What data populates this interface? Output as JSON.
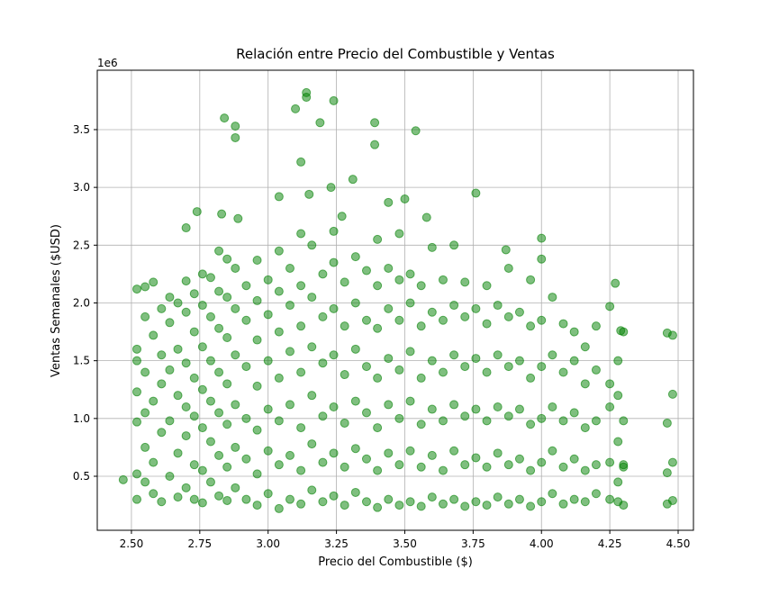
{
  "chart_data": {
    "type": "scatter",
    "title": "Relación entre Precio del Combustible y Ventas",
    "xlabel": "Precio del Combustible ($)",
    "ylabel": "Ventas Semanales ($USD)",
    "y_offset_label": "1e6",
    "color": "#008000",
    "grid": true,
    "xlim": [
      2.375,
      4.556
    ],
    "ylim": [
      0.0325,
      4.014
    ],
    "xticks": [
      {
        "value": 2.5,
        "label": "2.50"
      },
      2.75,
      {
        "value": 3.0,
        "label": "3.00"
      },
      3.25,
      {
        "value": 3.5,
        "label": "3.50"
      },
      3.75,
      {
        "value": 4.0,
        "label": "4.00"
      },
      4.25,
      {
        "value": 4.5,
        "label": "4.50"
      }
    ],
    "yticks": [
      0.5,
      {
        "value": 1.0,
        "label": "1.0"
      },
      1.5,
      {
        "value": 2.0,
        "label": "2.0"
      },
      2.5,
      {
        "value": 3.0,
        "label": "3.0"
      },
      3.5
    ],
    "x": [
      3.14,
      3.14,
      3.1,
      2.84,
      2.88,
      2.88,
      3.19,
      3.24,
      3.39,
      3.39,
      3.54,
      3.12,
      3.31,
      3.23,
      3.5,
      3.04,
      3.76,
      3.15,
      2.74,
      2.83,
      2.89,
      3.44,
      2.7,
      3.58,
      3.27,
      4.0,
      3.87,
      4.27,
      2.47,
      4.46,
      4.48,
      4.48,
      4.46,
      4.48,
      4.46,
      4.48,
      4.29,
      4.3,
      4.46,
      2.52,
      2.52,
      2.52,
      2.52,
      2.52,
      2.52,
      2.52,
      2.55,
      2.55,
      2.55,
      2.55,
      2.55,
      2.55,
      2.58,
      2.58,
      2.58,
      2.58,
      2.58,
      2.61,
      2.61,
      2.61,
      2.61,
      2.61,
      2.64,
      2.64,
      2.64,
      2.64,
      2.64,
      2.67,
      2.67,
      2.67,
      2.67,
      2.67,
      2.7,
      2.7,
      2.7,
      2.7,
      2.7,
      2.7,
      2.73,
      2.73,
      2.73,
      2.73,
      2.73,
      2.73,
      2.76,
      2.76,
      2.76,
      2.76,
      2.76,
      2.76,
      2.76,
      2.79,
      2.79,
      2.79,
      2.79,
      2.79,
      2.79,
      2.82,
      2.82,
      2.82,
      2.82,
      2.82,
      2.82,
      2.82,
      2.85,
      2.85,
      2.85,
      2.85,
      2.85,
      2.85,
      2.85,
      2.88,
      2.88,
      2.88,
      2.88,
      2.88,
      2.88,
      2.92,
      2.92,
      2.92,
      2.92,
      2.92,
      2.92,
      2.96,
      2.96,
      2.96,
      2.96,
      2.96,
      2.96,
      2.96,
      3.0,
      3.0,
      3.0,
      3.0,
      3.0,
      3.0,
      3.04,
      3.04,
      3.04,
      3.04,
      3.04,
      3.04,
      3.04,
      3.08,
      3.08,
      3.08,
      3.08,
      3.08,
      3.08,
      3.12,
      3.12,
      3.12,
      3.12,
      3.12,
      3.12,
      3.12,
      3.16,
      3.16,
      3.16,
      3.16,
      3.16,
      3.16,
      3.2,
      3.2,
      3.2,
      3.2,
      3.2,
      3.2,
      3.24,
      3.24,
      3.24,
      3.24,
      3.24,
      3.24,
      3.24,
      3.28,
      3.28,
      3.28,
      3.28,
      3.28,
      3.28,
      3.32,
      3.32,
      3.32,
      3.32,
      3.32,
      3.32,
      3.36,
      3.36,
      3.36,
      3.36,
      3.36,
      3.36,
      3.4,
      3.4,
      3.4,
      3.4,
      3.4,
      3.4,
      3.4,
      3.44,
      3.44,
      3.44,
      3.44,
      3.44,
      3.44,
      3.48,
      3.48,
      3.48,
      3.48,
      3.48,
      3.48,
      3.48,
      3.52,
      3.52,
      3.52,
      3.52,
      3.52,
      3.52,
      3.56,
      3.56,
      3.56,
      3.56,
      3.56,
      3.56,
      3.6,
      3.6,
      3.6,
      3.6,
      3.6,
      3.6,
      3.64,
      3.64,
      3.64,
      3.64,
      3.64,
      3.64,
      3.68,
      3.68,
      3.68,
      3.68,
      3.68,
      3.68,
      3.72,
      3.72,
      3.72,
      3.72,
      3.72,
      3.72,
      3.76,
      3.76,
      3.76,
      3.76,
      3.76,
      3.8,
      3.8,
      3.8,
      3.8,
      3.8,
      3.8,
      3.84,
      3.84,
      3.84,
      3.84,
      3.84,
      3.88,
      3.88,
      3.88,
      3.88,
      3.88,
      3.88,
      3.92,
      3.92,
      3.92,
      3.92,
      3.92,
      3.96,
      3.96,
      3.96,
      3.96,
      3.96,
      3.96,
      4.0,
      4.0,
      4.0,
      4.0,
      4.0,
      4.0,
      4.04,
      4.04,
      4.04,
      4.04,
      4.04,
      4.08,
      4.08,
      4.08,
      4.08,
      4.08,
      4.12,
      4.12,
      4.12,
      4.12,
      4.12,
      4.16,
      4.16,
      4.16,
      4.16,
      4.16,
      4.2,
      4.2,
      4.2,
      4.2,
      4.2,
      4.25,
      4.25,
      4.25,
      4.25,
      4.25,
      4.28,
      4.28,
      4.28,
      4.28,
      4.28,
      4.3,
      4.3,
      4.3,
      4.3
    ],
    "values": [
      3.82,
      3.78,
      3.68,
      3.6,
      3.53,
      3.43,
      3.56,
      3.75,
      3.56,
      3.37,
      3.49,
      3.22,
      3.07,
      3.0,
      2.9,
      2.92,
      2.95,
      2.94,
      2.79,
      2.77,
      2.73,
      2.87,
      2.65,
      2.74,
      2.75,
      2.56,
      2.46,
      2.17,
      0.47,
      1.74,
      1.21,
      0.62,
      0.26,
      0.29,
      0.96,
      1.72,
      1.76,
      0.6,
      0.53,
      0.3,
      0.52,
      0.97,
      1.23,
      1.5,
      1.6,
      2.12,
      0.45,
      0.75,
      1.05,
      1.4,
      1.88,
      2.14,
      0.35,
      0.62,
      1.15,
      1.72,
      2.18,
      0.28,
      0.88,
      1.3,
      1.55,
      1.95,
      0.5,
      0.98,
      1.42,
      1.83,
      2.05,
      0.32,
      0.7,
      1.2,
      1.6,
      2.0,
      0.4,
      0.85,
      1.1,
      1.48,
      1.92,
      2.19,
      0.3,
      0.6,
      1.02,
      1.35,
      1.75,
      2.08,
      0.27,
      0.55,
      0.92,
      1.25,
      1.62,
      1.98,
      2.25,
      0.45,
      0.8,
      1.15,
      1.5,
      1.88,
      2.22,
      0.33,
      0.68,
      1.05,
      1.4,
      1.78,
      2.1,
      2.45,
      0.29,
      0.58,
      0.95,
      1.3,
      1.7,
      2.05,
      2.38,
      0.4,
      0.75,
      1.12,
      1.55,
      1.95,
      2.3,
      0.3,
      0.65,
      1.0,
      1.45,
      1.85,
      2.15,
      0.25,
      0.52,
      0.9,
      1.28,
      1.68,
      2.02,
      2.37,
      0.35,
      0.72,
      1.08,
      1.5,
      1.9,
      2.2,
      0.22,
      0.6,
      0.98,
      1.35,
      1.75,
      2.1,
      2.45,
      0.3,
      0.68,
      1.12,
      1.58,
      1.98,
      2.3,
      0.26,
      0.55,
      0.92,
      1.4,
      1.8,
      2.15,
      2.6,
      0.38,
      0.78,
      1.2,
      1.62,
      2.05,
      2.5,
      0.28,
      0.62,
      1.02,
      1.48,
      1.88,
      2.25,
      0.33,
      0.7,
      1.1,
      1.55,
      1.95,
      2.35,
      2.62,
      0.25,
      0.58,
      0.96,
      1.38,
      1.8,
      2.18,
      0.36,
      0.74,
      1.15,
      1.6,
      2.0,
      2.4,
      0.28,
      0.65,
      1.05,
      1.45,
      1.85,
      2.28,
      0.23,
      0.55,
      0.92,
      1.35,
      1.78,
      2.15,
      2.55,
      0.3,
      0.7,
      1.12,
      1.52,
      1.95,
      2.3,
      0.25,
      0.6,
      1.0,
      1.42,
      1.85,
      2.2,
      2.6,
      0.28,
      0.72,
      1.15,
      1.58,
      2.0,
      2.25,
      0.24,
      0.58,
      0.95,
      1.35,
      1.8,
      2.15,
      0.32,
      0.68,
      1.08,
      1.5,
      1.92,
      2.48,
      0.26,
      0.55,
      0.98,
      1.4,
      1.85,
      2.2,
      0.3,
      0.72,
      1.12,
      1.55,
      1.98,
      2.5,
      0.24,
      0.6,
      1.02,
      1.45,
      1.88,
      2.18,
      0.28,
      0.66,
      1.08,
      1.52,
      1.95,
      0.25,
      0.58,
      0.98,
      1.4,
      1.82,
      2.15,
      0.32,
      0.7,
      1.1,
      1.55,
      1.98,
      0.26,
      0.6,
      1.02,
      1.45,
      1.88,
      2.3,
      0.3,
      0.65,
      1.08,
      1.5,
      1.92,
      0.24,
      0.55,
      0.95,
      1.35,
      1.8,
      2.2,
      0.28,
      0.62,
      1.0,
      1.45,
      1.85,
      2.38,
      0.35,
      0.72,
      1.1,
      1.55,
      2.05,
      0.26,
      0.58,
      0.98,
      1.4,
      1.82,
      0.3,
      0.65,
      1.05,
      1.5,
      1.75,
      0.28,
      0.55,
      0.92,
      1.3,
      1.62,
      0.35,
      0.6,
      0.98,
      1.42,
      1.8,
      0.3,
      0.62,
      1.1,
      1.3,
      1.97,
      0.28,
      0.45,
      0.8,
      1.2,
      1.5,
      0.25,
      0.58,
      0.98,
      1.75
    ]
  }
}
